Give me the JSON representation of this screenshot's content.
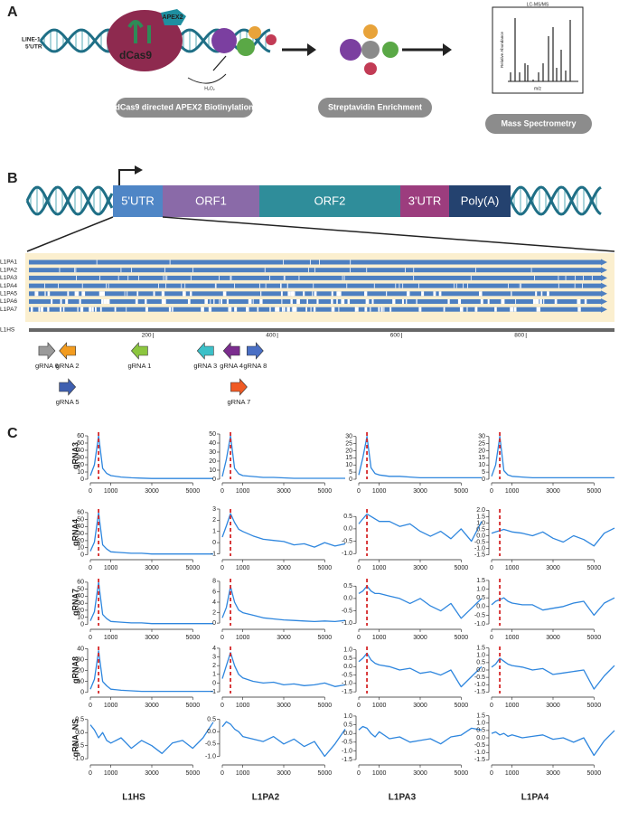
{
  "panels": {
    "a": {
      "label": "A",
      "locus_line1": "LINE-1",
      "locus_line2": "5'UTR",
      "enzyme": "APEX2",
      "protein": "dCas9",
      "reagent": "H₂O₂",
      "ms_title": "LC-MS/MS",
      "ms_ylabel": "Relative Abundance",
      "ms_xlabel": "m/z",
      "steps": [
        "dCas9 directed APEX2 Biotinylation",
        "Streptavidin Enrichment",
        "Mass Spectrometry"
      ]
    },
    "b": {
      "label": "B",
      "segments": [
        {
          "name": "5'UTR",
          "color": "#4f86c6"
        },
        {
          "name": "ORF1",
          "color": "#8a6aa8"
        },
        {
          "name": "ORF2",
          "color": "#2f8d9a"
        },
        {
          "name": "3'UTR",
          "color": "#9c3d7e"
        },
        {
          "name": "Poly(A)",
          "color": "#24426f"
        }
      ],
      "alignment_rows": [
        "L1PA1",
        "L1PA2",
        "L1PA3",
        "L1PA4",
        "L1PA5",
        "L1PA6",
        "L1PA7"
      ],
      "reference": "L1HS",
      "ruler_lim": [
        0,
        935
      ],
      "ruler_ticks": [
        200,
        400,
        600,
        800
      ],
      "guides": [
        {
          "name": "gRNA 6",
          "position": 29,
          "direction": "right",
          "color": "#9a9a9a"
        },
        {
          "name": "gRNA 2",
          "position": 62,
          "direction": "left",
          "color": "#f39c1f"
        },
        {
          "name": "gRNA 5",
          "position": 62,
          "direction": "right",
          "color": "#3f5fb0"
        },
        {
          "name": "gRNA 1",
          "position": 178,
          "direction": "left",
          "color": "#8cc63f"
        },
        {
          "name": "gRNA 3",
          "position": 284,
          "direction": "left",
          "color": "#3cc0c8"
        },
        {
          "name": "gRNA 4",
          "position": 326,
          "direction": "left",
          "color": "#7b2d8e"
        },
        {
          "name": "gRNA 7",
          "position": 338,
          "direction": "right",
          "color": "#f05a24"
        },
        {
          "name": "gRNA 8",
          "position": 364,
          "direction": "right",
          "color": "#4a6fc4"
        }
      ]
    },
    "c": {
      "label": "C",
      "x": [
        0,
        200,
        400,
        600,
        800,
        1000,
        1500,
        2000,
        2500,
        3000,
        3500,
        4000,
        4500,
        5000,
        5500,
        6000
      ],
      "xlim": [
        0,
        6000
      ],
      "xticks": [
        0,
        1000,
        3000,
        5000
      ],
      "columns": [
        "L1HS",
        "L1PA2",
        "L1PA3",
        "L1PA4"
      ],
      "rows": [
        {
          "name": "gRNA3",
          "plots": [
            {
              "ylim": [
                0,
                65
              ],
              "yticks": [
                0,
                10,
                20,
                30,
                40,
                50,
                60
              ],
              "marker_x": 400,
              "values": [
                5,
                20,
                60,
                15,
                8,
                5,
                3,
                2,
                1.5,
                1,
                1,
                1,
                1,
                1,
                1,
                1
              ]
            },
            {
              "ylim": [
                0,
                52
              ],
              "yticks": [
                0,
                10,
                20,
                30,
                40,
                50
              ],
              "marker_x": 400,
              "values": [
                3,
                22,
                48,
                12,
                6,
                4,
                3,
                2,
                2,
                1.5,
                1,
                1,
                1,
                1,
                1,
                1
              ]
            },
            {
              "ylim": [
                0,
                33
              ],
              "yticks": [
                0,
                5,
                10,
                15,
                20,
                25,
                30
              ],
              "marker_x": 400,
              "values": [
                3,
                15,
                30,
                8,
                4,
                3,
                2,
                2,
                1.5,
                1,
                1,
                1,
                1,
                1,
                1,
                1
              ]
            },
            {
              "ylim": [
                0,
                33
              ],
              "yticks": [
                0,
                5,
                10,
                15,
                20,
                25,
                30
              ],
              "marker_x": 400,
              "values": [
                2,
                10,
                30,
                6,
                3,
                2,
                1.5,
                1,
                1,
                1,
                1,
                1,
                1,
                1,
                1,
                1
              ]
            }
          ]
        },
        {
          "name": "gRNA4",
          "plots": [
            {
              "ylim": [
                -2,
                65
              ],
              "yticks": [
                0,
                10,
                20,
                30,
                40,
                50,
                60
              ],
              "marker_x": 400,
              "values": [
                5,
                18,
                60,
                14,
                8,
                4,
                3,
                2,
                2,
                1,
                1,
                1,
                1,
                1,
                1,
                1
              ]
            },
            {
              "ylim": [
                -1.2,
                3
              ],
              "yticks": [
                -1,
                0,
                1,
                2,
                3
              ],
              "marker_x": 400,
              "values": [
                0.5,
                1.5,
                2.6,
                1.8,
                1.2,
                1,
                0.6,
                0.3,
                0.2,
                0.1,
                -0.2,
                -0.1,
                -0.4,
                0,
                -0.3,
                -0.1
              ]
            },
            {
              "ylim": [
                -1.1,
                0.8
              ],
              "yticks": [
                {
                  "value": -1,
                  "label": "-1.0"
                },
                -0.5,
                {
                  "value": 0,
                  "label": "0.0"
                },
                0.5
              ],
              "marker_x": 400,
              "values": [
                0.2,
                0.4,
                0.6,
                0.5,
                0.4,
                0.3,
                0.3,
                0.1,
                0.2,
                -0.1,
                -0.3,
                -0.1,
                -0.4,
                0,
                -0.5,
                0.3
              ]
            },
            {
              "ylim": [
                -1.6,
                2.1
              ],
              "yticks": [
                -1.5,
                {
                  "value": -1,
                  "label": "-1.0"
                },
                -0.5,
                {
                  "value": 0,
                  "label": "0.0"
                },
                0.5,
                {
                  "value": 1,
                  "label": "1.0"
                },
                1.5,
                {
                  "value": 2,
                  "label": "2.0"
                }
              ],
              "marker_x": 400,
              "values": [
                0.2,
                0.3,
                0.4,
                0.5,
                0.4,
                0.3,
                0.2,
                0,
                0.3,
                -0.2,
                -0.5,
                0,
                -0.3,
                -0.8,
                0.2,
                0.6
              ]
            }
          ]
        },
        {
          "name": "gRNA7",
          "plots": [
            {
              "ylim": [
                -2,
                65
              ],
              "yticks": [
                0,
                10,
                20,
                30,
                40,
                50,
                60
              ],
              "marker_x": 400,
              "values": [
                5,
                18,
                60,
                14,
                8,
                4,
                3,
                2,
                2,
                1,
                1,
                1,
                1,
                1,
                1,
                1
              ]
            },
            {
              "ylim": [
                -0.5,
                8.5
              ],
              "yticks": [
                0,
                2,
                4,
                6,
                8
              ],
              "marker_x": 400,
              "values": [
                1,
                3,
                7,
                4,
                2.5,
                2,
                1.5,
                1,
                0.8,
                0.6,
                0.5,
                0.4,
                0.3,
                0.4,
                0.3,
                0.5
              ]
            },
            {
              "ylim": [
                -1.1,
                0.8
              ],
              "yticks": [
                {
                  "value": -1,
                  "label": "-1.0"
                },
                -0.5,
                {
                  "value": 0,
                  "label": "0.0"
                },
                0.5
              ],
              "marker_x": 400,
              "values": [
                0.2,
                0.3,
                0.5,
                0.3,
                0.2,
                0.2,
                0.1,
                0,
                -0.2,
                0,
                -0.3,
                -0.5,
                -0.2,
                -0.8,
                -0.4,
                0
              ]
            },
            {
              "ylim": [
                -1.1,
                1.6
              ],
              "yticks": [
                {
                  "value": -1,
                  "label": "-1.0"
                },
                -0.5,
                {
                  "value": 0,
                  "label": "0.0"
                },
                0.5,
                {
                  "value": 1,
                  "label": "1.0"
                },
                1.5
              ],
              "marker_x": 400,
              "values": [
                0.1,
                0.3,
                0.4,
                0.5,
                0.3,
                0.2,
                0.1,
                0.1,
                -0.2,
                -0.1,
                0,
                0.2,
                0.3,
                -0.5,
                0.2,
                0.5
              ]
            }
          ]
        },
        {
          "name": "gRNA8",
          "plots": [
            {
              "ylim": [
                -1,
                42
              ],
              "yticks": [
                0,
                10,
                20,
                30,
                40
              ],
              "marker_x": 400,
              "values": [
                3,
                12,
                38,
                10,
                6,
                3,
                2,
                1.5,
                1,
                1,
                1,
                1,
                1,
                1,
                1,
                1
              ]
            },
            {
              "ylim": [
                -1.2,
                4.2
              ],
              "yticks": [
                -1,
                0,
                1,
                2,
                3,
                4
              ],
              "marker_x": 400,
              "values": [
                0.5,
                2,
                3.5,
                2,
                1,
                0.6,
                0.2,
                0,
                0.1,
                -0.2,
                -0.1,
                -0.3,
                -0.2,
                0,
                -0.4,
                -0.2
              ]
            },
            {
              "ylim": [
                -1.6,
                1.2
              ],
              "yticks": [
                -1.5,
                {
                  "value": -1,
                  "label": "-1.0"
                },
                -0.5,
                {
                  "value": 0,
                  "label": "0.0"
                },
                0.5,
                {
                  "value": 1,
                  "label": "1.0"
                }
              ],
              "marker_x": 400,
              "values": [
                0.3,
                0.5,
                0.8,
                0.4,
                0.2,
                0.1,
                0,
                -0.2,
                -0.1,
                -0.4,
                -0.3,
                -0.5,
                -0.2,
                -1.2,
                -0.6,
                0
              ]
            },
            {
              "ylim": [
                -1.6,
                1.6
              ],
              "yticks": [
                -1.5,
                {
                  "value": -1,
                  "label": "-1.0"
                },
                -0.5,
                {
                  "value": 0,
                  "label": "0.0"
                },
                0.5,
                {
                  "value": 1,
                  "label": "1.0"
                },
                1.5
              ],
              "marker_x": 400,
              "values": [
                0.2,
                0.4,
                0.8,
                0.6,
                0.4,
                0.3,
                0.2,
                0,
                0.1,
                -0.3,
                -0.2,
                -0.1,
                0,
                -1.3,
                -0.4,
                0.3
              ]
            }
          ]
        },
        {
          "name": "gRNA_NS",
          "plots": [
            {
              "ylim": [
                -1.1,
                0.7
              ],
              "yticks": [
                {
                  "value": -1,
                  "label": "-1.0"
                },
                -0.5,
                {
                  "value": 0,
                  "label": "0.0"
                },
                0.5
              ],
              "values": [
                0.3,
                0.1,
                -0.2,
                0,
                -0.3,
                -0.4,
                -0.2,
                -0.6,
                -0.3,
                -0.5,
                -0.8,
                -0.4,
                -0.3,
                -0.6,
                -0.2,
                0.4
              ]
            },
            {
              "ylim": [
                -1.2,
                0.7
              ],
              "yticks": [
                {
                  "value": -1,
                  "label": "-1.0"
                },
                -0.5,
                {
                  "value": 0,
                  "label": "0.0"
                },
                0.5
              ],
              "values": [
                0.2,
                0.4,
                0.3,
                0.1,
                0,
                -0.2,
                -0.3,
                -0.4,
                -0.2,
                -0.5,
                -0.3,
                -0.6,
                -0.4,
                -1,
                -0.5,
                0.1
              ]
            },
            {
              "ylim": [
                -1.6,
                1.1
              ],
              "yticks": [
                -1.5,
                {
                  "value": -1,
                  "label": "-1.0"
                },
                -0.5,
                {
                  "value": 0,
                  "label": "0.0"
                },
                0.5,
                {
                  "value": 1,
                  "label": "1.0"
                }
              ],
              "values": [
                0.2,
                0.4,
                0.3,
                0,
                -0.2,
                0.1,
                -0.3,
                -0.2,
                -0.5,
                -0.4,
                -0.3,
                -0.6,
                -0.2,
                -0.1,
                0.3,
                0.2
              ]
            },
            {
              "ylim": [
                -1.6,
                1.6
              ],
              "yticks": [
                -1.5,
                {
                  "value": -1,
                  "label": "-1.0"
                },
                -0.5,
                {
                  "value": 0,
                  "label": "0.0"
                },
                0.5,
                {
                  "value": 1,
                  "label": "1.0"
                },
                1.5
              ],
              "values": [
                0.3,
                0.4,
                0.2,
                0.3,
                0.1,
                0.2,
                0,
                0.1,
                0.2,
                -0.1,
                0,
                -0.3,
                0,
                -1.2,
                -0.2,
                0.5
              ]
            }
          ]
        }
      ]
    }
  }
}
